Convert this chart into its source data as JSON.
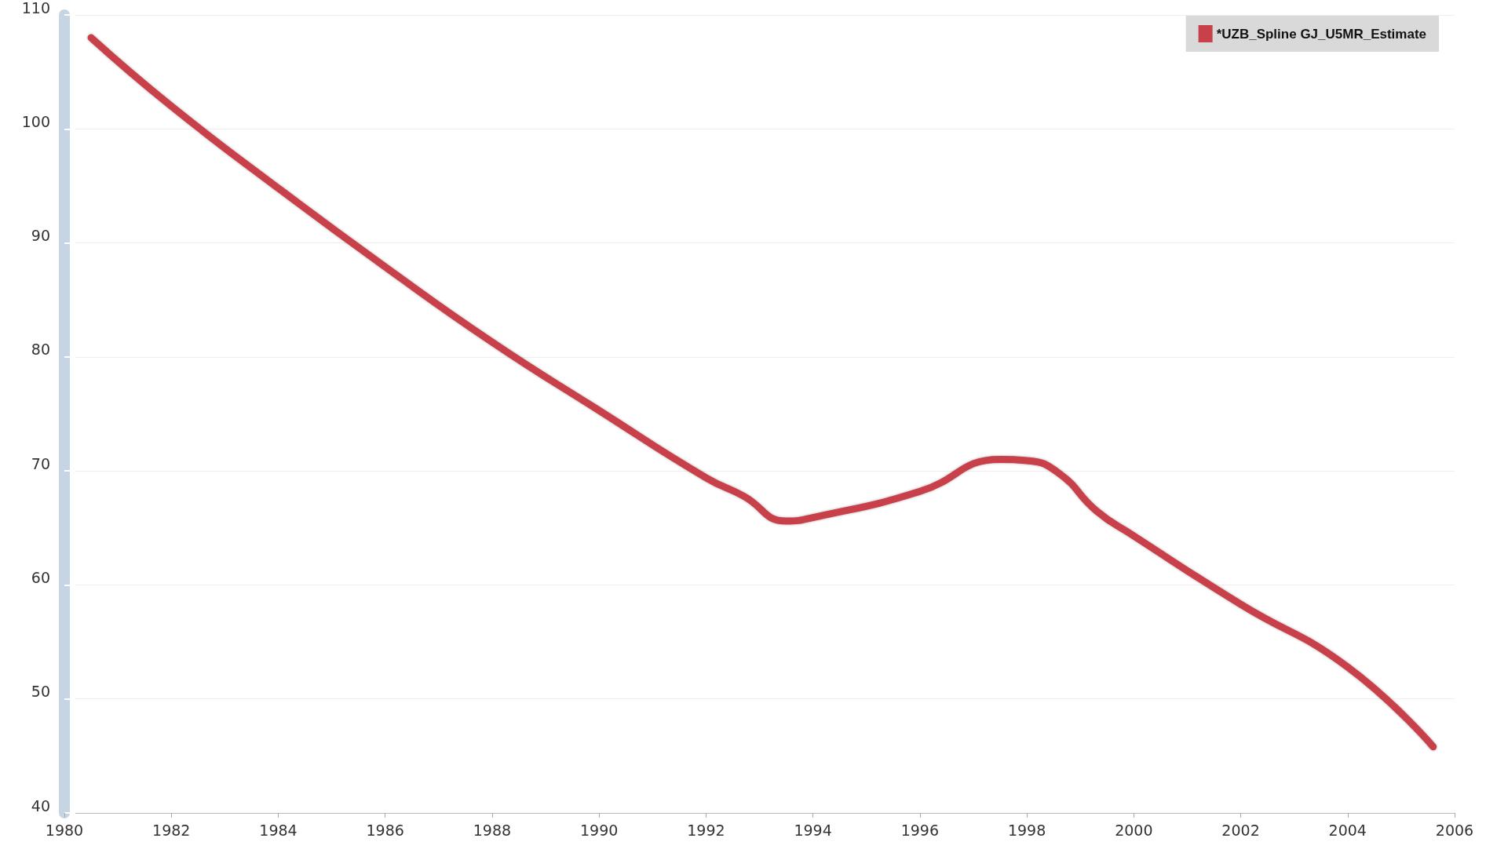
{
  "chart_data": {
    "type": "line",
    "x": [
      1980.5,
      1982,
      1984,
      1986,
      1988,
      1990,
      1992,
      1992.7,
      1993.5,
      1994,
      1996,
      1997.5,
      1998,
      1998.6,
      1999.3,
      2000,
      2002,
      2004,
      2005.6
    ],
    "series": [
      {
        "name": "*UZB_Spline GJ_U5MR_Estimate",
        "color": "#c8404a",
        "values": [
          108.0,
          102.0,
          94.8,
          87.9,
          81.3,
          75.3,
          69.4,
          67.8,
          65.6,
          65.9,
          68.2,
          71.0,
          70.9,
          69.8,
          66.5,
          64.3,
          58.3,
          52.8,
          45.8
        ]
      }
    ],
    "xlim": [
      1980,
      2006
    ],
    "xticks": [
      1980,
      1982,
      1984,
      1986,
      1988,
      1990,
      1992,
      1994,
      1996,
      1998,
      2000,
      2002,
      2004,
      2006
    ],
    "ylim": [
      40,
      110
    ],
    "yticks": [
      40,
      50,
      60,
      70,
      80,
      90,
      100,
      110
    ],
    "grid": "y",
    "legend": "top right",
    "marker": "none",
    "line_style": "solid"
  }
}
